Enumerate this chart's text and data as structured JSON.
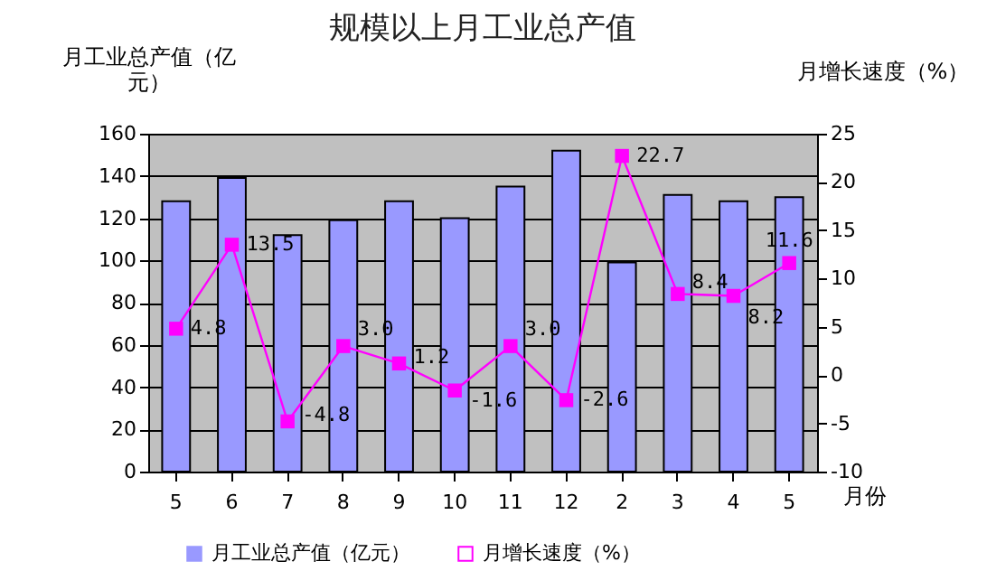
{
  "chart_data": {
    "type": "bar",
    "title": "规模以上月工业总产值",
    "ylabel": "月工业总产值（亿元）",
    "y2label": "月增长速度（%）",
    "xlabel": "月份",
    "categories": [
      "5",
      "6",
      "7",
      "8",
      "9",
      "10",
      "11",
      "12",
      "2",
      "3",
      "4",
      "5"
    ],
    "series": [
      {
        "name": "月工业总产值（亿元）",
        "color": "#9999ff",
        "values": [
          128,
          139,
          112,
          119,
          128,
          120,
          135,
          152,
          99,
          131,
          128,
          130
        ]
      },
      {
        "name": "月增长速度（%）",
        "type": "line",
        "axis": "y2",
        "color": "#ff00ff",
        "values": [
          4.8,
          13.5,
          -4.8,
          3.0,
          1.2,
          -1.6,
          3.0,
          -2.6,
          22.7,
          8.4,
          8.2,
          11.6
        ],
        "value_labels": [
          "4.8",
          "13.5",
          "-4.8",
          "3.0",
          "1.2",
          "-1.6",
          "3.0",
          "-2.6",
          "22.7",
          "8.4",
          "8.2",
          "11.6"
        ]
      }
    ],
    "ylim": [
      0,
      160
    ],
    "yticks": [
      0,
      20,
      40,
      60,
      80,
      100,
      120,
      140,
      160
    ],
    "y2lim": [
      -10,
      25
    ],
    "y2ticks": [
      -10,
      -5,
      0,
      5,
      10,
      15,
      20,
      25
    ],
    "grid": "y",
    "legend": "bottom",
    "marker": "square",
    "line_style": "solid"
  }
}
